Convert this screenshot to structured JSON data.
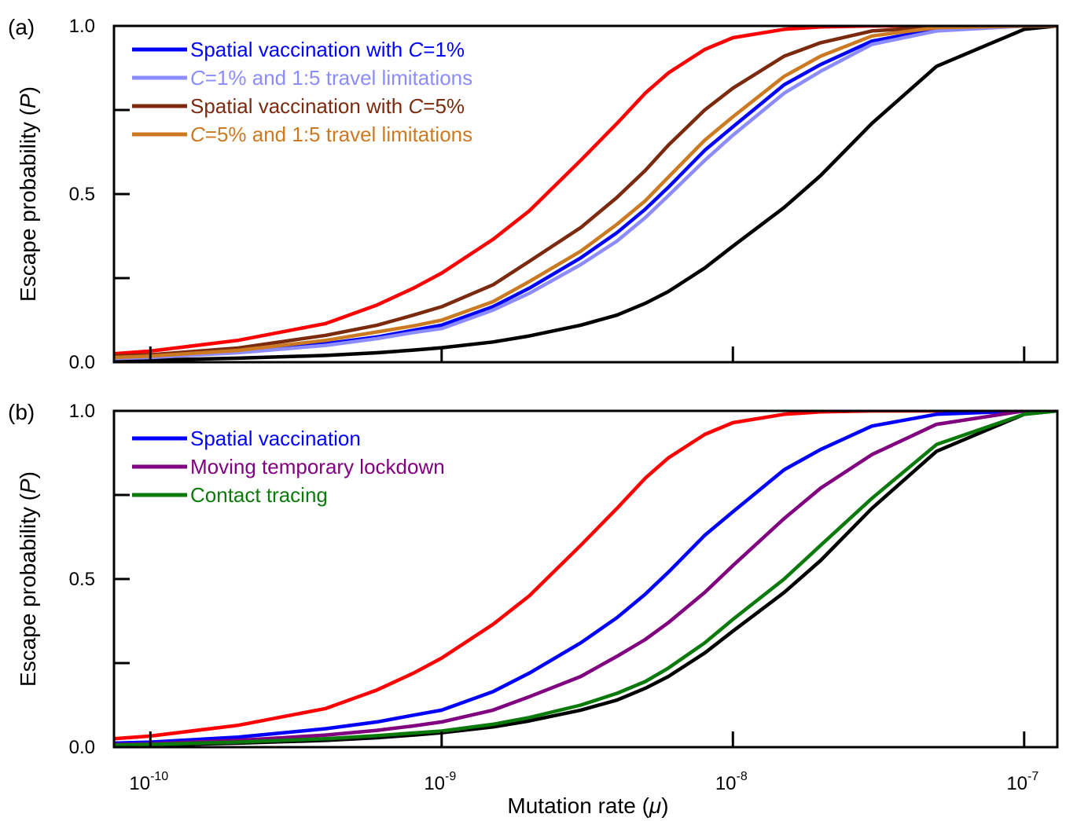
{
  "chart_data": [
    {
      "panel_label": "(a)",
      "type": "line",
      "xscale": "log",
      "xlim": [
        7.5e-11,
        1.3e-07
      ],
      "ylim": [
        0,
        1
      ],
      "xlabel": "",
      "ylabel": {
        "prefix": "Escape probability (",
        "italic": "P",
        "suffix": ")"
      },
      "grid": false,
      "legend": "top-left",
      "yticks": [
        {
          "value": 0,
          "label": "0.0"
        },
        {
          "value": 0.25,
          "label": ""
        },
        {
          "value": 0.5,
          "label": "0.5"
        },
        {
          "value": 0.75,
          "label": ""
        },
        {
          "value": 1,
          "label": "1.0"
        }
      ],
      "xticks": [
        {
          "value": 1e-10,
          "label": ""
        },
        {
          "value": 1e-09,
          "label": ""
        },
        {
          "value": 1e-08,
          "label": ""
        },
        {
          "value": 1e-07,
          "label": ""
        }
      ],
      "series": [
        {
          "name": "",
          "color": "#ff0000",
          "x": [
            7.5e-11,
            1e-10,
            2e-10,
            4e-10,
            6e-10,
            8e-10,
            1e-09,
            1.5e-09,
            2e-09,
            3e-09,
            4e-09,
            5e-09,
            6e-09,
            8e-09,
            1e-08,
            1.5e-08,
            2e-08,
            3e-08,
            5e-08,
            1e-07,
            1.3e-07
          ],
          "y": [
            0.025,
            0.033,
            0.065,
            0.115,
            0.17,
            0.22,
            0.265,
            0.365,
            0.45,
            0.6,
            0.71,
            0.8,
            0.86,
            0.93,
            0.965,
            0.99,
            0.997,
            1.0,
            1.0,
            1.0,
            1.0
          ]
        },
        {
          "name": "",
          "color": "#000000",
          "x": [
            7.5e-11,
            1e-10,
            2e-10,
            4e-10,
            6e-10,
            8e-10,
            1e-09,
            1.5e-09,
            2e-09,
            3e-09,
            4e-09,
            5e-09,
            6e-09,
            8e-09,
            1e-08,
            1.5e-08,
            2e-08,
            3e-08,
            5e-08,
            1e-07,
            1.3e-07
          ],
          "y": [
            0.005,
            0.006,
            0.012,
            0.02,
            0.028,
            0.036,
            0.043,
            0.06,
            0.078,
            0.11,
            0.14,
            0.175,
            0.21,
            0.28,
            0.345,
            0.46,
            0.555,
            0.71,
            0.88,
            0.99,
            1.0
          ]
        },
        {
          "name": "Spatial vaccination with {C}=1%",
          "color": "#0000ff",
          "x": [
            7.5e-11,
            1e-10,
            2e-10,
            4e-10,
            6e-10,
            8e-10,
            1e-09,
            1.5e-09,
            2e-09,
            3e-09,
            4e-09,
            5e-09,
            6e-09,
            8e-09,
            1e-08,
            1.5e-08,
            2e-08,
            3e-08,
            5e-08,
            1e-07,
            1.3e-07
          ],
          "y": [
            0.012,
            0.015,
            0.03,
            0.055,
            0.075,
            0.095,
            0.11,
            0.165,
            0.22,
            0.31,
            0.385,
            0.455,
            0.52,
            0.63,
            0.7,
            0.825,
            0.885,
            0.955,
            0.99,
            1.0,
            1.0
          ]
        },
        {
          "name": "{C}=1% and 1:5 travel limitations",
          "color": "#8c8cff",
          "x": [
            7.5e-11,
            1e-10,
            2e-10,
            4e-10,
            6e-10,
            8e-10,
            1e-09,
            1.5e-09,
            2e-09,
            3e-09,
            4e-09,
            5e-09,
            6e-09,
            8e-09,
            1e-08,
            1.5e-08,
            2e-08,
            3e-08,
            5e-08,
            1e-07,
            1.3e-07
          ],
          "y": [
            0.011,
            0.014,
            0.028,
            0.05,
            0.07,
            0.088,
            0.1,
            0.155,
            0.205,
            0.29,
            0.36,
            0.43,
            0.495,
            0.6,
            0.675,
            0.8,
            0.865,
            0.945,
            0.985,
            1.0,
            1.0
          ]
        },
        {
          "name": "Spatial vaccination with {C}=5%",
          "color": "#7b2a0e",
          "x": [
            7.5e-11,
            1e-10,
            2e-10,
            4e-10,
            6e-10,
            8e-10,
            1e-09,
            1.5e-09,
            2e-09,
            3e-09,
            4e-09,
            5e-09,
            6e-09,
            8e-09,
            1e-08,
            1.5e-08,
            2e-08,
            3e-08,
            5e-08,
            1e-07,
            1.3e-07
          ],
          "y": [
            0.018,
            0.022,
            0.042,
            0.08,
            0.11,
            0.14,
            0.165,
            0.23,
            0.3,
            0.4,
            0.49,
            0.57,
            0.645,
            0.75,
            0.815,
            0.91,
            0.95,
            0.985,
            0.997,
            1.0,
            1.0
          ]
        },
        {
          "name": "{C}=5% and 1:5 travel limitations",
          "color": "#cc7a22",
          "x": [
            7.5e-11,
            1e-10,
            2e-10,
            4e-10,
            6e-10,
            8e-10,
            1e-09,
            1.5e-09,
            2e-09,
            3e-09,
            4e-09,
            5e-09,
            6e-09,
            8e-09,
            1e-08,
            1.5e-08,
            2e-08,
            3e-08,
            5e-08,
            1e-07,
            1.3e-07
          ],
          "y": [
            0.014,
            0.018,
            0.035,
            0.065,
            0.09,
            0.108,
            0.125,
            0.18,
            0.24,
            0.33,
            0.41,
            0.48,
            0.55,
            0.66,
            0.73,
            0.85,
            0.91,
            0.97,
            0.995,
            1.0,
            1.0
          ]
        }
      ]
    },
    {
      "panel_label": "(b)",
      "type": "line",
      "xscale": "log",
      "xlim": [
        7.5e-11,
        1.3e-07
      ],
      "ylim": [
        0,
        1
      ],
      "xlabel": {
        "prefix": "Mutation rate (",
        "italic": "μ",
        "suffix": ")"
      },
      "ylabel": {
        "prefix": "Escape probability (",
        "italic": "P",
        "suffix": ")"
      },
      "grid": false,
      "legend": "top-left",
      "yticks": [
        {
          "value": 0,
          "label": "0.0"
        },
        {
          "value": 0.25,
          "label": ""
        },
        {
          "value": 0.5,
          "label": "0.5"
        },
        {
          "value": 0.75,
          "label": ""
        },
        {
          "value": 1,
          "label": "1.0"
        }
      ],
      "xticks": [
        {
          "value": 1e-10,
          "base": "10",
          "exp": "-10"
        },
        {
          "value": 1e-09,
          "base": "10",
          "exp": "-9"
        },
        {
          "value": 1e-08,
          "base": "10",
          "exp": "-8"
        },
        {
          "value": 1e-07,
          "base": "10",
          "exp": "-7"
        }
      ],
      "series": [
        {
          "name": "",
          "color": "#ff0000",
          "x": [
            7.5e-11,
            1e-10,
            2e-10,
            4e-10,
            6e-10,
            8e-10,
            1e-09,
            1.5e-09,
            2e-09,
            3e-09,
            4e-09,
            5e-09,
            6e-09,
            8e-09,
            1e-08,
            1.5e-08,
            2e-08,
            3e-08,
            5e-08,
            1e-07,
            1.3e-07
          ],
          "y": [
            0.025,
            0.033,
            0.065,
            0.115,
            0.17,
            0.22,
            0.265,
            0.365,
            0.45,
            0.6,
            0.71,
            0.8,
            0.86,
            0.93,
            0.965,
            0.99,
            0.997,
            1.0,
            1.0,
            1.0,
            1.0
          ]
        },
        {
          "name": "",
          "color": "#000000",
          "x": [
            7.5e-11,
            1e-10,
            2e-10,
            4e-10,
            6e-10,
            8e-10,
            1e-09,
            1.5e-09,
            2e-09,
            3e-09,
            4e-09,
            5e-09,
            6e-09,
            8e-09,
            1e-08,
            1.5e-08,
            2e-08,
            3e-08,
            5e-08,
            1e-07,
            1.3e-07
          ],
          "y": [
            0.005,
            0.006,
            0.012,
            0.02,
            0.028,
            0.036,
            0.043,
            0.06,
            0.078,
            0.11,
            0.14,
            0.175,
            0.21,
            0.28,
            0.345,
            0.46,
            0.555,
            0.71,
            0.88,
            0.99,
            1.0
          ]
        },
        {
          "name": "Spatial vaccination",
          "color": "#0000ff",
          "x": [
            7.5e-11,
            1e-10,
            2e-10,
            4e-10,
            6e-10,
            8e-10,
            1e-09,
            1.5e-09,
            2e-09,
            3e-09,
            4e-09,
            5e-09,
            6e-09,
            8e-09,
            1e-08,
            1.5e-08,
            2e-08,
            3e-08,
            5e-08,
            1e-07,
            1.3e-07
          ],
          "y": [
            0.012,
            0.015,
            0.03,
            0.055,
            0.075,
            0.095,
            0.11,
            0.165,
            0.22,
            0.31,
            0.385,
            0.455,
            0.52,
            0.63,
            0.7,
            0.825,
            0.885,
            0.955,
            0.99,
            1.0,
            1.0
          ]
        },
        {
          "name": "Moving temporary lockdown",
          "color": "#800080",
          "x": [
            7.5e-11,
            1e-10,
            2e-10,
            4e-10,
            6e-10,
            8e-10,
            1e-09,
            1.5e-09,
            2e-09,
            3e-09,
            4e-09,
            5e-09,
            6e-09,
            8e-09,
            1e-08,
            1.5e-08,
            2e-08,
            3e-08,
            5e-08,
            1e-07,
            1.3e-07
          ],
          "y": [
            0.008,
            0.01,
            0.02,
            0.036,
            0.05,
            0.063,
            0.075,
            0.11,
            0.15,
            0.21,
            0.27,
            0.32,
            0.37,
            0.46,
            0.54,
            0.68,
            0.77,
            0.87,
            0.96,
            1.0,
            1.0
          ]
        },
        {
          "name": "Contact tracing",
          "color": "#0a7a0a",
          "x": [
            7.5e-11,
            1e-10,
            2e-10,
            4e-10,
            6e-10,
            8e-10,
            1e-09,
            1.5e-09,
            2e-09,
            3e-09,
            4e-09,
            5e-09,
            6e-09,
            8e-09,
            1e-08,
            1.5e-08,
            2e-08,
            3e-08,
            5e-08,
            1e-07,
            1.3e-07
          ],
          "y": [
            0.006,
            0.008,
            0.015,
            0.025,
            0.034,
            0.042,
            0.048,
            0.068,
            0.088,
            0.125,
            0.16,
            0.195,
            0.235,
            0.31,
            0.38,
            0.5,
            0.6,
            0.74,
            0.9,
            0.99,
            1.0
          ]
        }
      ]
    }
  ]
}
